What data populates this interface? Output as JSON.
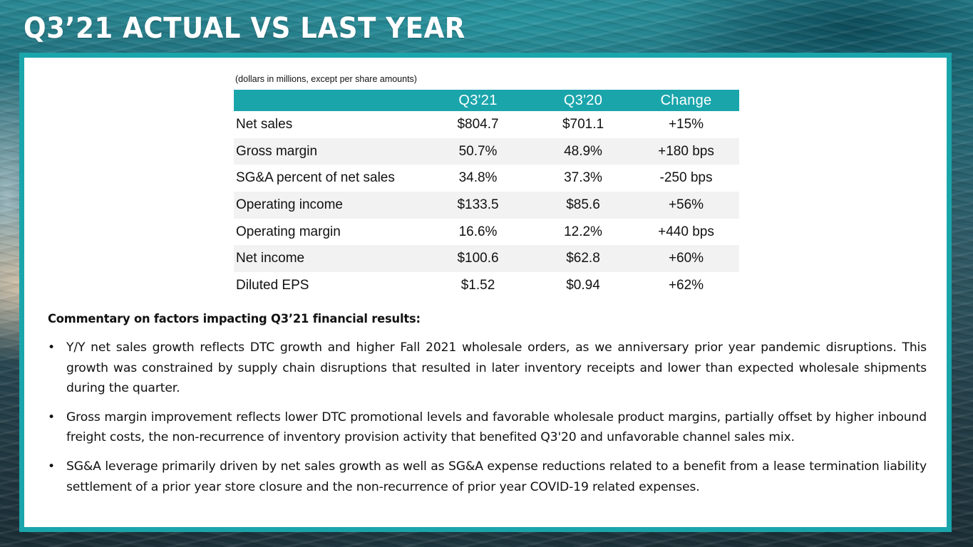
{
  "title": "Q3’21 ACTUAL VS LAST YEAR",
  "units_note": "(dollars in millions, except per share amounts)",
  "table": {
    "headers": [
      "",
      "Q3'21",
      "Q3'20",
      "Change"
    ],
    "rows": [
      {
        "label": "Net sales",
        "q3_21": "$804.7",
        "q3_20": "$701.1",
        "change": "+15%"
      },
      {
        "label": "Gross margin",
        "q3_21": "50.7%",
        "q3_20": "48.9%",
        "change": "+180 bps"
      },
      {
        "label": "SG&A percent of net sales",
        "q3_21": "34.8%",
        "q3_20": "37.3%",
        "change": "-250 bps"
      },
      {
        "label": "Operating income",
        "q3_21": "$133.5",
        "q3_20": "$85.6",
        "change": "+56%"
      },
      {
        "label": "Operating margin",
        "q3_21": "16.6%",
        "q3_20": "12.2%",
        "change": "+440 bps"
      },
      {
        "label": "Net income",
        "q3_21": "$100.6",
        "q3_20": "$62.8",
        "change": "+60%"
      },
      {
        "label": "Diluted EPS",
        "q3_21": "$1.52",
        "q3_20": "$0.94",
        "change": "+62%"
      }
    ]
  },
  "commentary": {
    "heading": "Commentary on factors impacting Q3’21 financial results:",
    "bullet_symbol": "•",
    "bullets": [
      "Y/Y net sales growth reflects DTC growth and higher Fall 2021 wholesale orders, as we anniversary prior year pandemic disruptions. This growth was constrained by supply chain disruptions that resulted in later inventory receipts and lower than expected wholesale shipments during the quarter.",
      "Gross margin improvement reflects lower DTC promotional levels and favorable wholesale product margins, partially offset by higher inbound freight costs, the non-recurrence of inventory provision activity that benefited Q3'20 and unfavorable channel sales mix.",
      "SG&A leverage primarily driven by net sales growth as well as SG&A expense reductions related to a benefit from a lease termination liability settlement of a prior year store closure and the non-recurrence of prior year COVID-19 related expenses."
    ]
  },
  "colors": {
    "accent_teal": "#1aa5ab",
    "row_alt_bg": "#f2f2f2",
    "text": "#111111"
  }
}
